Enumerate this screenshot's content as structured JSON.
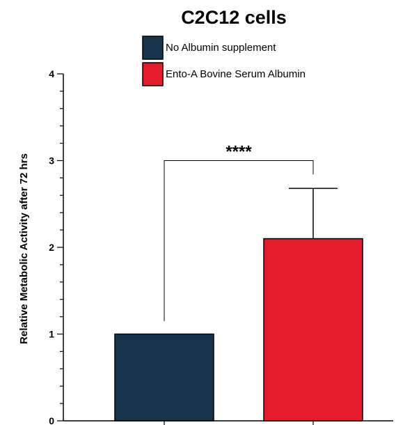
{
  "chart_data": {
    "type": "bar",
    "title": "C2C12 cells",
    "ylabel": "Relative Metabolic Activity after 72 hrs",
    "xlabel": "",
    "ylim": [
      0,
      4
    ],
    "yticks": [
      "0",
      "1",
      "2",
      "3",
      "4"
    ],
    "categories": [
      "No Albumin supplement",
      "Ento-A Bovine Serum Albumin"
    ],
    "values": [
      1.0,
      2.1
    ],
    "error_upper": [
      0,
      0.58
    ],
    "colors": [
      "#17344d",
      "#e31b2a"
    ],
    "legend": {
      "placement": "top",
      "entries": [
        "No Albumin supplement",
        "Ento-A Bovine Serum Albumin"
      ]
    },
    "significance": {
      "label": "****",
      "between": [
        "No Albumin supplement",
        "Ento-A Bovine Serum Albumin"
      ]
    },
    "grid": false
  }
}
